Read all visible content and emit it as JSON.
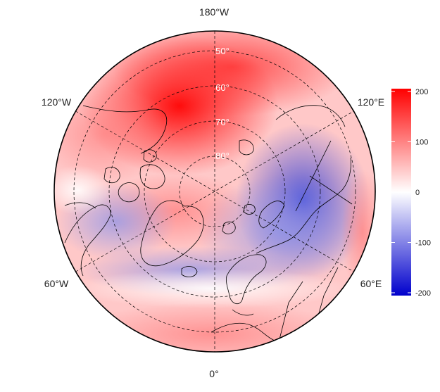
{
  "map": {
    "projection": "north polar stereographic",
    "longitude_labels": {
      "top": "180°W",
      "upper_left": "120°W",
      "upper_right": "120°E",
      "lower_left": "60°W",
      "lower_right": "60°E",
      "bottom": "0°"
    },
    "latitude_labels": [
      "50°",
      "60°",
      "70°",
      "80°"
    ],
    "graticule_latitudes": [
      50,
      60,
      70,
      80
    ],
    "graticule_longitudes": [
      0,
      60,
      120,
      180,
      240,
      300
    ],
    "field_summary": {
      "positive_region": "Pacific / Alaska / eastern Siberia sector, strongest near 180°W",
      "negative_region": "Eurasian Arctic / Barents–Kara sector and North Atlantic band"
    }
  },
  "colorbar": {
    "min": -200,
    "max": 200,
    "ticks": [
      "200",
      "100",
      "0",
      "-100",
      "-200"
    ],
    "colors": {
      "low": "#0000cc",
      "mid": "#ffffff",
      "high": "#ff0000"
    }
  }
}
